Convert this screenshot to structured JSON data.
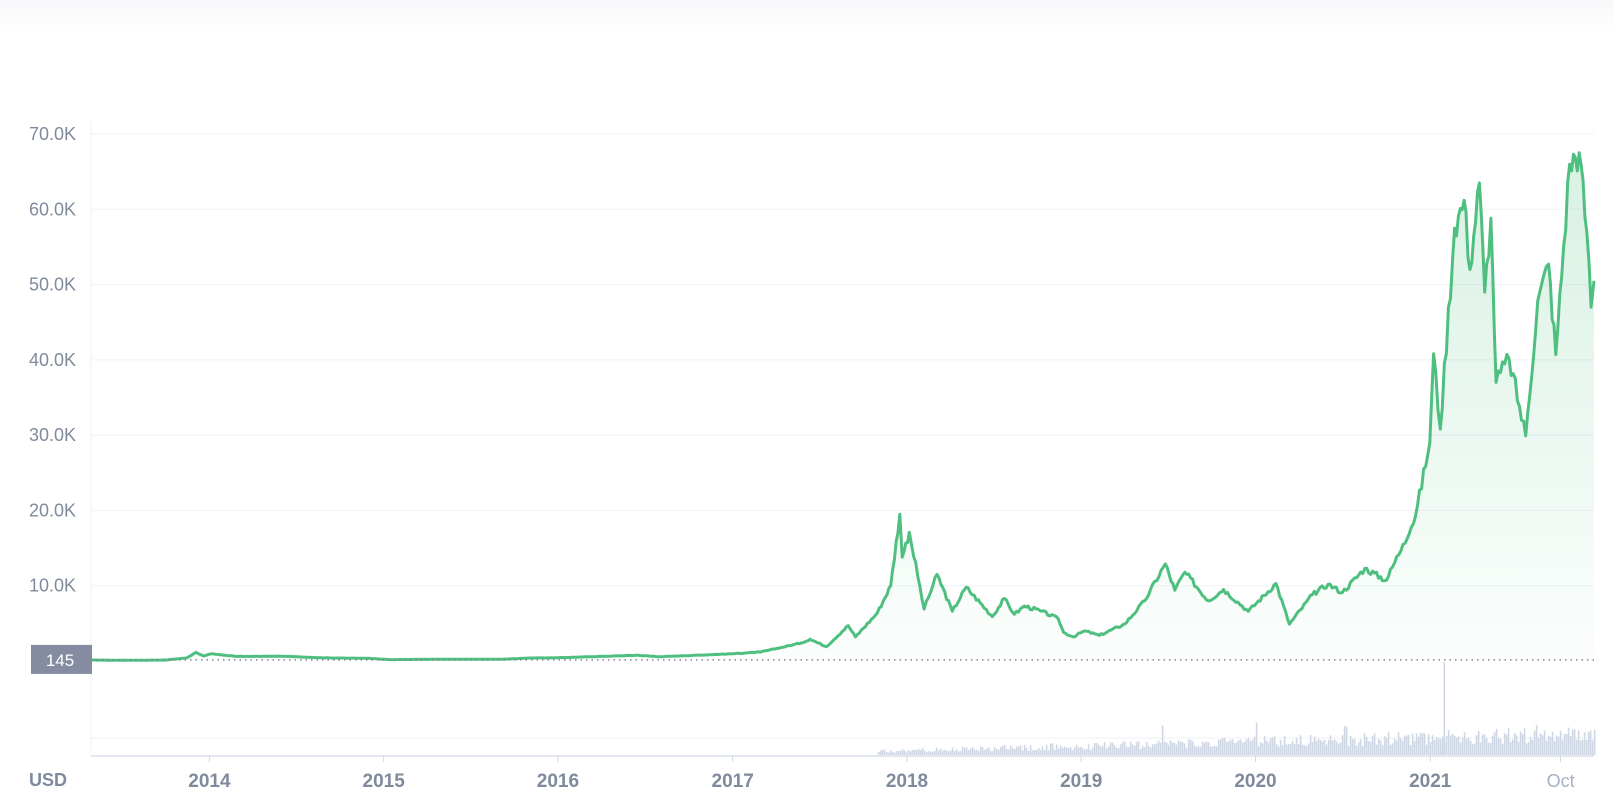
{
  "chart_data": {
    "type": "area",
    "currency_label": "USD",
    "y_axis": {
      "ylim": [
        0,
        70000
      ],
      "ticks": [
        10000,
        20000,
        30000,
        40000,
        50000,
        60000,
        70000
      ],
      "tick_labels": [
        "10.0K",
        "20.0K",
        "30.0K",
        "40.0K",
        "50.0K",
        "60.0K",
        "70.0K"
      ]
    },
    "x_axis": {
      "range": [
        "2013-04-28",
        "2021-12-10"
      ],
      "ticks": [
        {
          "date": "2014-01-01",
          "label": "2014",
          "style": "bold"
        },
        {
          "date": "2015-01-01",
          "label": "2015",
          "style": "bold"
        },
        {
          "date": "2016-01-01",
          "label": "2016",
          "style": "bold"
        },
        {
          "date": "2017-01-01",
          "label": "2017",
          "style": "bold"
        },
        {
          "date": "2018-01-01",
          "label": "2018",
          "style": "bold"
        },
        {
          "date": "2019-01-01",
          "label": "2019",
          "style": "bold"
        },
        {
          "date": "2020-01-01",
          "label": "2020",
          "style": "bold"
        },
        {
          "date": "2021-01-01",
          "label": "2021",
          "style": "bold"
        },
        {
          "date": "2021-10-01",
          "label": "Oct",
          "style": "light"
        }
      ]
    },
    "reference_line": {
      "value": 145,
      "label": "145"
    },
    "grid": true,
    "colors": {
      "line": "#4fbf80",
      "fill": "#4fbf80",
      "grid": "#eff2f5",
      "badge": "#858ca2",
      "volume": "#cfd6e4"
    },
    "series": [
      {
        "points": [
          [
            "2013-04-28",
            135
          ],
          [
            "2013-07-01",
            90
          ],
          [
            "2013-10-01",
            125
          ],
          [
            "2013-11-15",
            420
          ],
          [
            "2013-12-04",
            1150
          ],
          [
            "2013-12-20",
            650
          ],
          [
            "2014-01-05",
            950
          ],
          [
            "2014-03-01",
            600
          ],
          [
            "2014-06-01",
            640
          ],
          [
            "2014-09-01",
            410
          ],
          [
            "2014-12-01",
            360
          ],
          [
            "2015-01-14",
            180
          ],
          [
            "2015-05-01",
            235
          ],
          [
            "2015-09-01",
            230
          ],
          [
            "2015-11-04",
            400
          ],
          [
            "2016-01-01",
            430
          ],
          [
            "2016-06-16",
            760
          ],
          [
            "2016-08-01",
            570
          ],
          [
            "2016-12-31",
            960
          ],
          [
            "2017-03-01",
            1200
          ],
          [
            "2017-05-25",
            2400
          ],
          [
            "2017-06-12",
            2900
          ],
          [
            "2017-07-16",
            1900
          ],
          [
            "2017-08-31",
            4700
          ],
          [
            "2017-09-15",
            3200
          ],
          [
            "2017-10-31",
            6400
          ],
          [
            "2017-11-28",
            10000
          ],
          [
            "2017-12-17",
            19500
          ],
          [
            "2017-12-22",
            13800
          ],
          [
            "2018-01-06",
            17100
          ],
          [
            "2018-02-06",
            6900
          ],
          [
            "2018-03-05",
            11500
          ],
          [
            "2018-04-06",
            6600
          ],
          [
            "2018-05-05",
            9800
          ],
          [
            "2018-06-29",
            5900
          ],
          [
            "2018-07-24",
            8300
          ],
          [
            "2018-08-14",
            6200
          ],
          [
            "2018-09-04",
            7300
          ],
          [
            "2018-10-10",
            6600
          ],
          [
            "2018-11-14",
            5600
          ],
          [
            "2018-11-25",
            3800
          ],
          [
            "2018-12-15",
            3200
          ],
          [
            "2019-01-08",
            4000
          ],
          [
            "2019-02-08",
            3400
          ],
          [
            "2019-04-02",
            4900
          ],
          [
            "2019-05-14",
            8000
          ],
          [
            "2019-06-26",
            12900
          ],
          [
            "2019-07-16",
            9400
          ],
          [
            "2019-08-06",
            11800
          ],
          [
            "2019-09-24",
            8000
          ],
          [
            "2019-10-26",
            9500
          ],
          [
            "2019-12-17",
            6600
          ],
          [
            "2020-02-13",
            10300
          ],
          [
            "2020-03-12",
            4900
          ],
          [
            "2020-04-29",
            8800
          ],
          [
            "2020-06-01",
            10200
          ],
          [
            "2020-07-01",
            9100
          ],
          [
            "2020-08-17",
            12300
          ],
          [
            "2020-10-01",
            10700
          ],
          [
            "2020-11-05",
            15500
          ],
          [
            "2020-12-01",
            19200
          ],
          [
            "2020-12-31",
            29000
          ],
          [
            "2021-01-08",
            40800
          ],
          [
            "2021-01-22",
            30800
          ],
          [
            "2021-02-21",
            57500
          ],
          [
            "2021-03-13",
            61200
          ],
          [
            "2021-03-25",
            52000
          ],
          [
            "2021-04-14",
            63500
          ],
          [
            "2021-04-25",
            49000
          ],
          [
            "2021-05-08",
            58800
          ],
          [
            "2021-05-19",
            37000
          ],
          [
            "2021-06-15",
            40200
          ],
          [
            "2021-07-20",
            29900
          ],
          [
            "2021-08-14",
            47800
          ],
          [
            "2021-09-06",
            52700
          ],
          [
            "2021-09-21",
            40700
          ],
          [
            "2021-10-20",
            66000
          ],
          [
            "2021-11-09",
            67500
          ],
          [
            "2021-11-25",
            57000
          ],
          [
            "2021-12-04",
            47000
          ],
          [
            "2021-12-10",
            50500
          ]
        ]
      }
    ]
  }
}
